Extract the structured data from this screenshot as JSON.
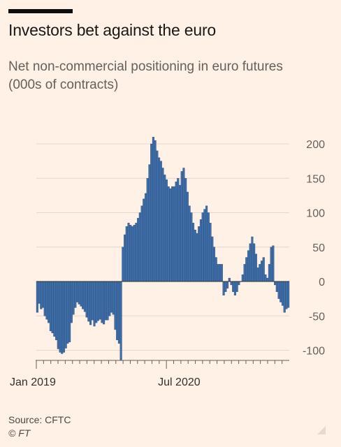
{
  "header": {
    "title": "Investors bet against the euro",
    "subtitle": "Net non-commercial positioning in euro futures (000s of contracts)"
  },
  "footer": {
    "source": "Source: CFTC",
    "credit": "© FT"
  },
  "colors": {
    "bar": "#3f6ea6",
    "background": "#fff1e5"
  },
  "chart_data": {
    "type": "bar",
    "title": "Investors bet against the euro",
    "subtitle": "Net non-commercial positioning in euro futures (000s of contracts)",
    "x_tick_labels": [
      "Jan 2019",
      "Jul 2020"
    ],
    "y_ticks": [
      200,
      150,
      100,
      50,
      0,
      -50,
      -100
    ],
    "y_tick_labels": [
      "200",
      "150",
      "100",
      "50",
      "0",
      "-50",
      "-100"
    ],
    "ylim": [
      -115,
      210
    ],
    "y_axis_position": "right",
    "grid": true,
    "values": [
      -45,
      -32,
      -40,
      -38,
      -50,
      -55,
      -60,
      -72,
      -75,
      -80,
      -85,
      -98,
      -103,
      -105,
      -103,
      -97,
      -90,
      -88,
      -60,
      -48,
      -38,
      -30,
      -33,
      -36,
      -40,
      -44,
      -52,
      -58,
      -63,
      -56,
      -65,
      -60,
      -57,
      -55,
      -60,
      -62,
      -56,
      -56,
      -50,
      -45,
      -48,
      -70,
      -85,
      -90,
      -115,
      50,
      68,
      80,
      85,
      82,
      80,
      82,
      85,
      92,
      100,
      110,
      120,
      128,
      150,
      170,
      200,
      210,
      205,
      190,
      180,
      175,
      165,
      155,
      148,
      138,
      135,
      138,
      138,
      145,
      150,
      140,
      160,
      165,
      150,
      130,
      110,
      100,
      85,
      75,
      70,
      80,
      90,
      100,
      105,
      110,
      100,
      85,
      65,
      50,
      35,
      25,
      25,
      25,
      -20,
      -15,
      -10,
      5,
      -5,
      -15,
      -20,
      -15,
      -5,
      0,
      10,
      25,
      35,
      45,
      55,
      65,
      55,
      40,
      20,
      25,
      30,
      35,
      10,
      5,
      25,
      50,
      52,
      -5,
      -15,
      -25,
      -30,
      -35,
      -45,
      -40,
      -38
    ]
  }
}
